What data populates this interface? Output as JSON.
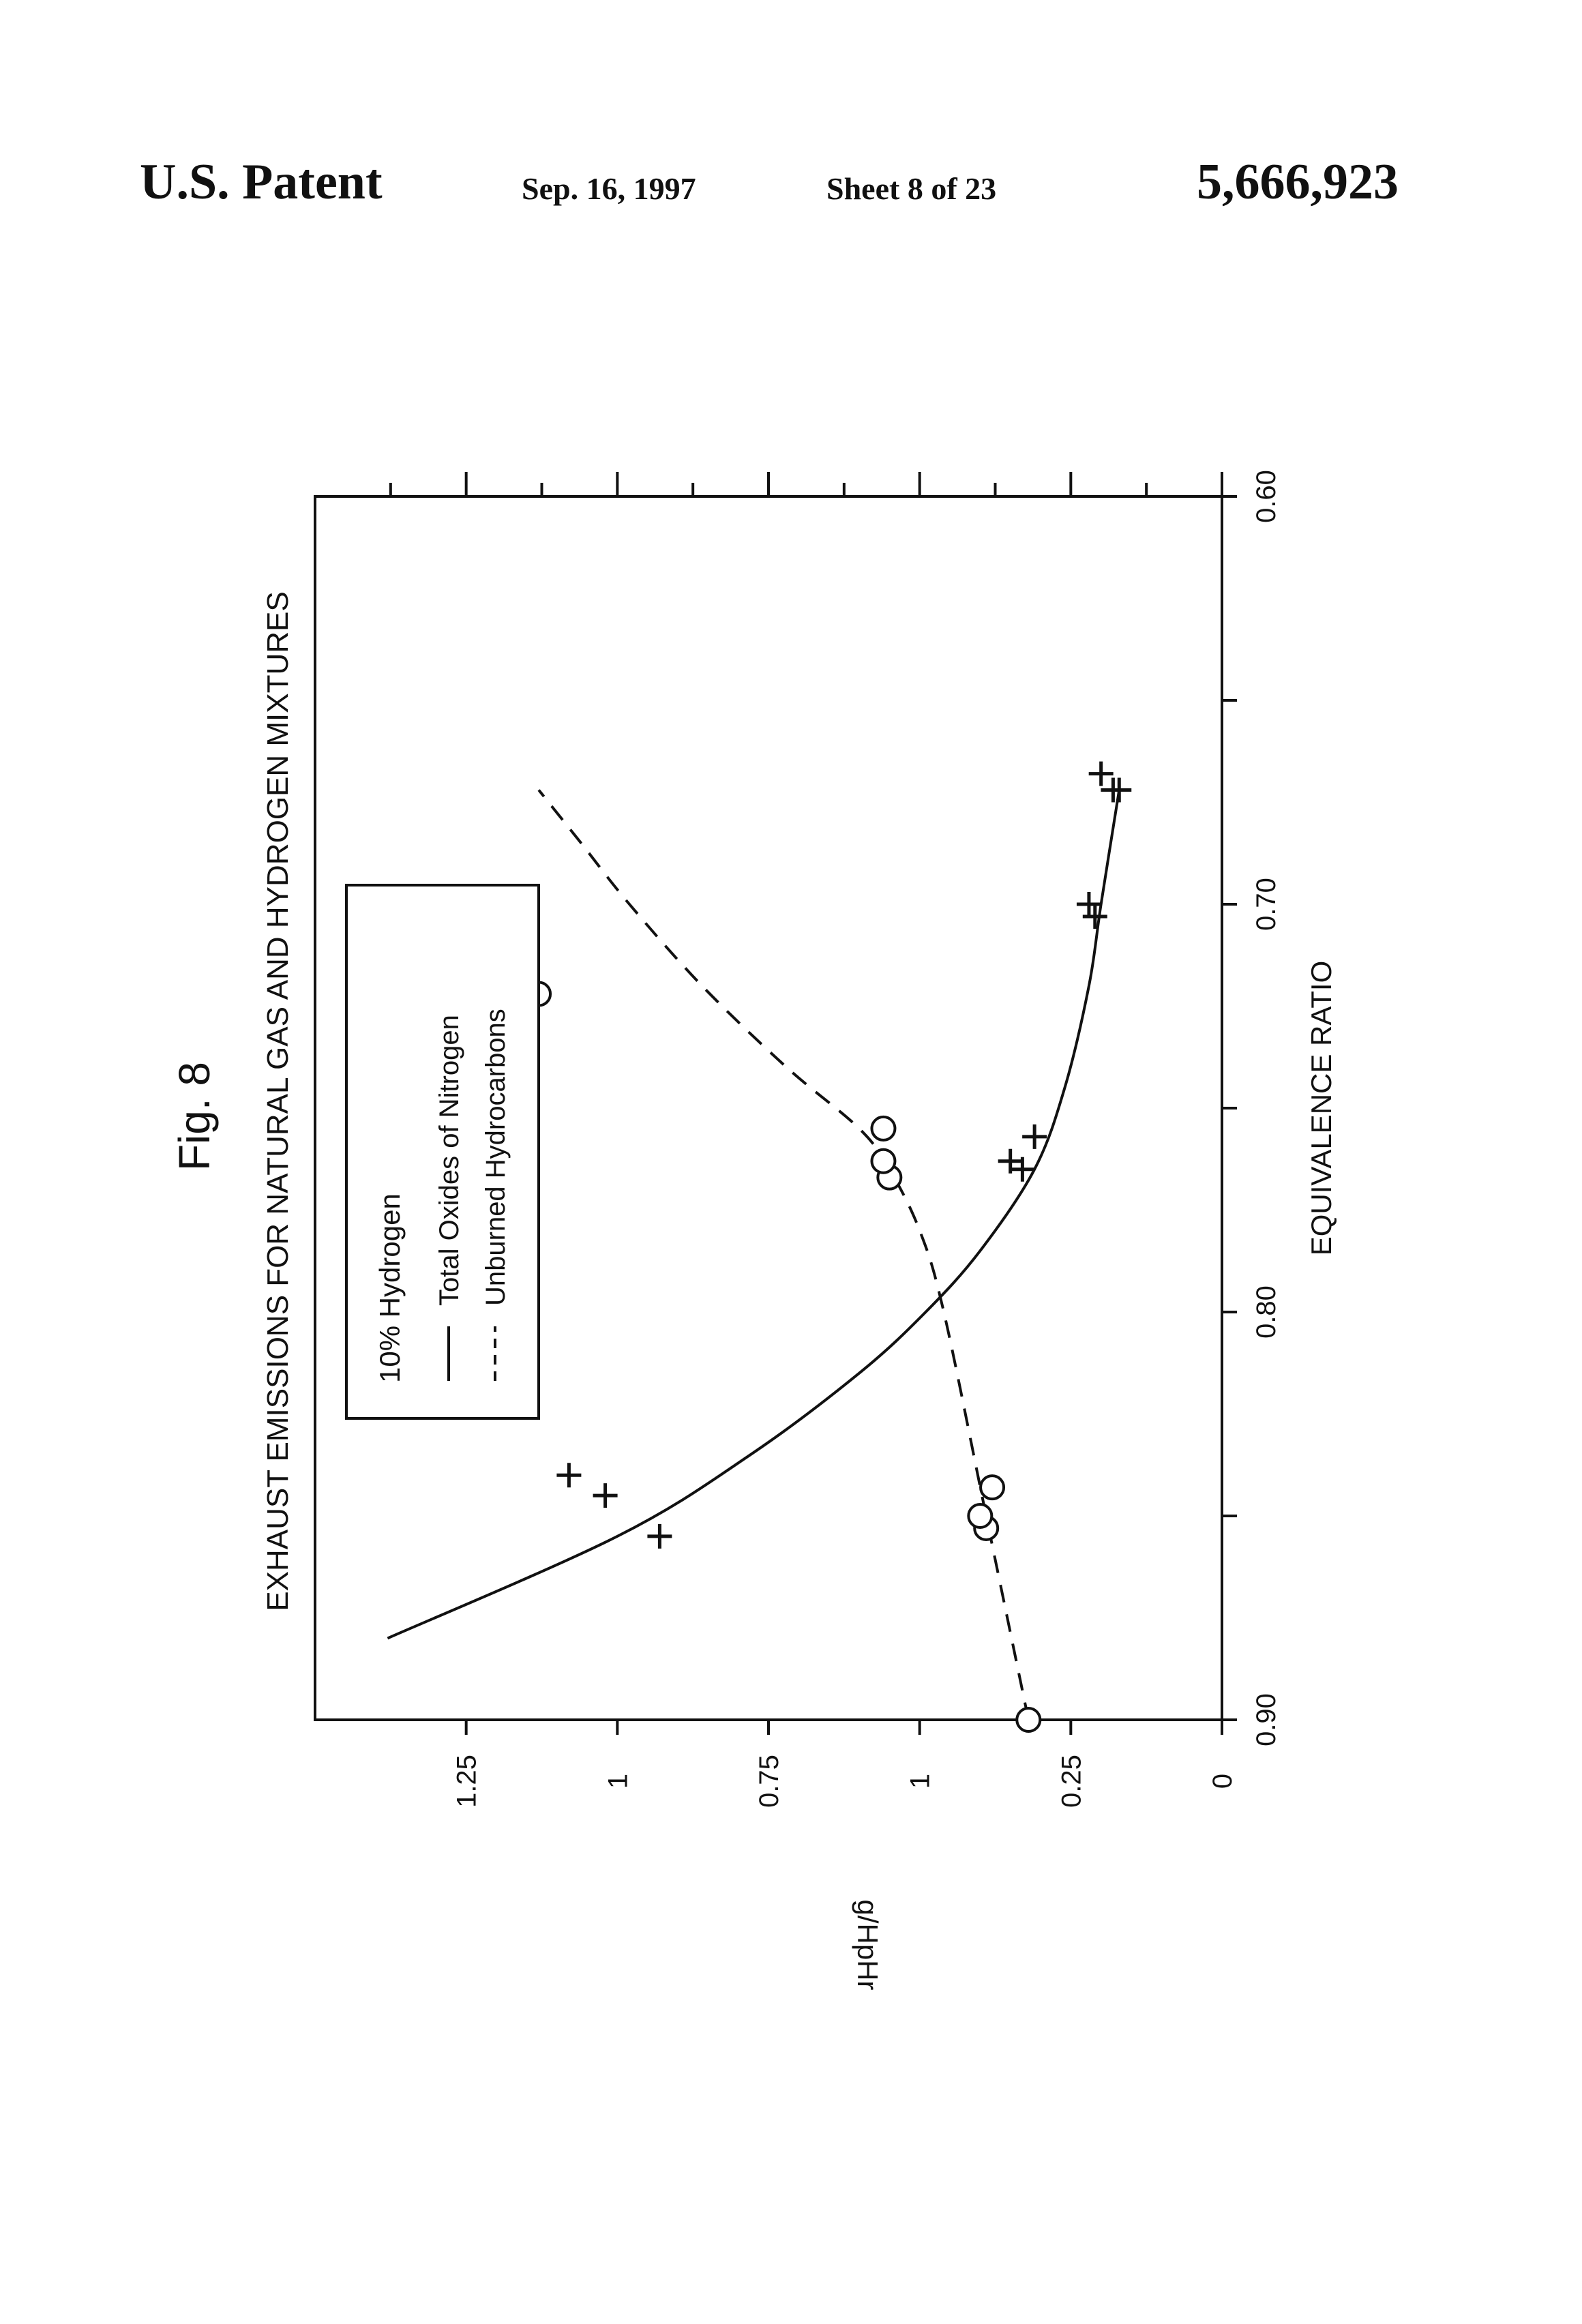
{
  "header": {
    "left": "U.S. Patent",
    "date": "Sep. 16, 1997",
    "sheet": "Sheet 8 of 23",
    "patent_number": "5,666,923"
  },
  "chart_data": {
    "type": "line",
    "figure_label": "Fig. 8",
    "title": "EXHAUST EMISSIONS FOR NATURAL GAS AND HYDROGEN MIXTURES",
    "xlabel": "EQUIVALENCE RATIO",
    "ylabel": "g/HpHr",
    "xlim": [
      0.9,
      0.6
    ],
    "ylim": [
      0,
      1.5
    ],
    "x_ticks": [
      0.9,
      0.85,
      0.8,
      0.75,
      0.7,
      0.65,
      0.6
    ],
    "x_tick_labels": [
      "0.90",
      "",
      "0.80",
      "",
      "0.70",
      "",
      "0.60"
    ],
    "y_ticks": [
      0,
      0.25,
      0.5,
      0.75,
      1.0,
      1.25
    ],
    "y_tick_labels": [
      "0",
      "0.25",
      "1",
      "0.75",
      "1",
      "1.25"
    ],
    "y_minor_ticks": [
      0.125,
      0.375,
      0.625,
      0.875,
      1.125,
      1.375
    ],
    "legend": {
      "heading": "10% Hydrogen",
      "position": "upper-left-inside",
      "entries": [
        {
          "label": "Total Oxides of Nitrogen",
          "style": "solid"
        },
        {
          "label": "Unburned Hydrocarbons",
          "style": "dashed"
        }
      ]
    },
    "series": [
      {
        "name": "Total Oxides of Nitrogen",
        "line_style": "solid",
        "marker": "plus",
        "points": [
          {
            "x": 0.84,
            "y": 1.08
          },
          {
            "x": 0.845,
            "y": 1.02
          },
          {
            "x": 0.855,
            "y": 0.93
          },
          {
            "x": 0.765,
            "y": 0.33
          },
          {
            "x": 0.763,
            "y": 0.35
          },
          {
            "x": 0.757,
            "y": 0.31
          },
          {
            "x": 0.703,
            "y": 0.21
          },
          {
            "x": 0.7,
            "y": 0.22
          },
          {
            "x": 0.672,
            "y": 0.18
          },
          {
            "x": 0.672,
            "y": 0.17
          },
          {
            "x": 0.668,
            "y": 0.2
          }
        ],
        "curve": [
          {
            "x": 0.88,
            "y": 1.38
          },
          {
            "x": 0.855,
            "y": 1.0
          },
          {
            "x": 0.835,
            "y": 0.78
          },
          {
            "x": 0.815,
            "y": 0.6
          },
          {
            "x": 0.8,
            "y": 0.49
          },
          {
            "x": 0.785,
            "y": 0.4
          },
          {
            "x": 0.765,
            "y": 0.31
          },
          {
            "x": 0.745,
            "y": 0.26
          },
          {
            "x": 0.72,
            "y": 0.22
          },
          {
            "x": 0.7,
            "y": 0.2
          },
          {
            "x": 0.672,
            "y": 0.17
          }
        ]
      },
      {
        "name": "Unburned Hydrocarbons",
        "line_style": "dashed",
        "marker": "circle",
        "points": [
          {
            "x": 0.9,
            "y": 0.32
          },
          {
            "x": 0.853,
            "y": 0.39
          },
          {
            "x": 0.85,
            "y": 0.4
          },
          {
            "x": 0.843,
            "y": 0.38
          },
          {
            "x": 0.767,
            "y": 0.55
          },
          {
            "x": 0.763,
            "y": 0.56
          },
          {
            "x": 0.755,
            "y": 0.56
          },
          {
            "x": 0.72,
            "y": 1.15
          },
          {
            "x": 0.715,
            "y": 1.17
          },
          {
            "x": 0.722,
            "y": 1.13
          }
        ],
        "curve": [
          {
            "x": 0.9,
            "y": 0.32
          },
          {
            "x": 0.85,
            "y": 0.39
          },
          {
            "x": 0.8,
            "y": 0.46
          },
          {
            "x": 0.78,
            "y": 0.5
          },
          {
            "x": 0.765,
            "y": 0.55
          },
          {
            "x": 0.755,
            "y": 0.6
          },
          {
            "x": 0.74,
            "y": 0.72
          },
          {
            "x": 0.72,
            "y": 0.86
          },
          {
            "x": 0.7,
            "y": 0.98
          },
          {
            "x": 0.685,
            "y": 1.06
          },
          {
            "x": 0.672,
            "y": 1.13
          }
        ]
      }
    ]
  }
}
